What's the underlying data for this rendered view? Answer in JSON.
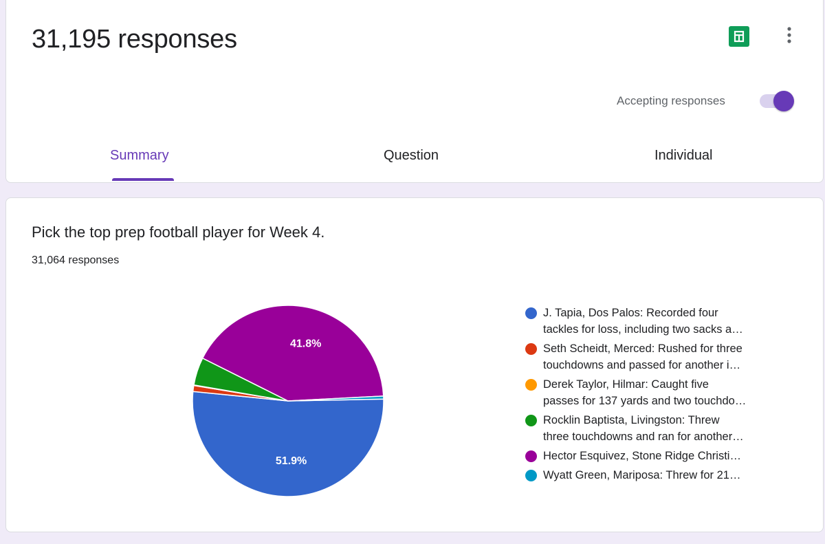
{
  "header": {
    "title": "31,195 responses",
    "accepting_label": "Accepting responses",
    "accepting_on": true,
    "sheets_icon": "google-sheets-icon",
    "more_icon": "more-vert-icon",
    "tabs": [
      {
        "label": "Summary",
        "active": true
      },
      {
        "label": "Question",
        "active": false
      },
      {
        "label": "Individual",
        "active": false
      }
    ]
  },
  "question": {
    "title": "Pick the top prep football player for Week 4.",
    "response_count": "31,064 responses"
  },
  "legend": [
    {
      "line1": "J. Tapia, Dos Palos: Recorded four",
      "line2": "tackles for loss, including two sacks a…",
      "color": "#3366cc"
    },
    {
      "line1": "Seth Scheidt, Merced: Rushed for three",
      "line2": "touchdowns and passed for another i…",
      "color": "#dc3912"
    },
    {
      "line1": "Derek Taylor, Hilmar: Caught five",
      "line2": "passes for 137 yards and two touchdo…",
      "color": "#ff9900"
    },
    {
      "line1": "Rocklin Baptista, Livingston: Threw",
      "line2": "three touchdowns and ran for another…",
      "color": "#109618"
    },
    {
      "line1": "Hector Esquivez, Stone Ridge Christi…",
      "line2": "",
      "color": "#990099"
    },
    {
      "line1": "Wyatt Green, Mariposa: Threw for 21…",
      "line2": "",
      "color": "#0099c6"
    }
  ],
  "chart_data": {
    "type": "pie",
    "categories": [
      "J. Tapia, Dos Palos",
      "Seth Scheidt, Merced",
      "Derek Taylor, Hilmar",
      "Rocklin Baptista, Livingston",
      "Hector Esquivez, Stone Ridge Christi…",
      "Wyatt Green, Mariposa"
    ],
    "values": [
      51.9,
      1.0,
      0.1,
      4.7,
      41.8,
      0.5
    ],
    "labels": [
      "51.9%",
      "",
      "",
      "",
      "41.8%",
      ""
    ],
    "colors": [
      "#3366cc",
      "#dc3912",
      "#ff9900",
      "#109618",
      "#990099",
      "#0099c6"
    ]
  }
}
